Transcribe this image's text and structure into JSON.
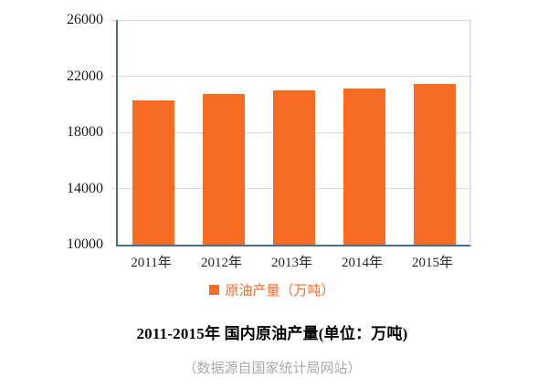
{
  "chart_data": {
    "type": "bar",
    "categories": [
      "2011年",
      "2012年",
      "2013年",
      "2014年",
      "2015年"
    ],
    "values": [
      20288,
      20748,
      20992,
      21143,
      21456
    ],
    "series_name": "原油产量（万吨）",
    "title": "2011-2015年 国内原油产量(单位：万吨)",
    "xlabel": "",
    "ylabel": "",
    "ylim": [
      10000,
      26000
    ],
    "yticks": [
      10000,
      14000,
      18000,
      22000,
      26000
    ],
    "grid": "horizontal",
    "legend_position": "bottom",
    "bar_color": "#F76B23"
  },
  "legend": {
    "label": "原油产量（万吨）"
  },
  "caption": {
    "title": "2011-2015年 国内原油产量(单位：万吨)",
    "source": "（数据源自国家统计局网站）"
  },
  "colors": {
    "bar": "#F76B23",
    "axis": "#4A6F8C",
    "gridline": "#D9D9D9",
    "plot_right_border": "#E2E2E2",
    "tick_label": "#1A1A1A",
    "legend_text": "#F76B23",
    "title_text": "#000000",
    "source_text": "#A9A9A9"
  }
}
